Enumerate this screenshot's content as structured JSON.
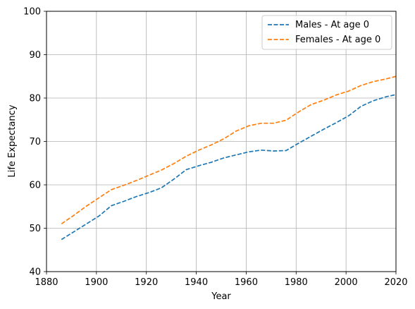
{
  "chart_data": {
    "type": "line",
    "title": "",
    "xlabel": "Year",
    "ylabel": "Life Expectancy",
    "xlim": [
      1880,
      2020
    ],
    "ylim": [
      40,
      100
    ],
    "xticks": [
      1880,
      1900,
      1920,
      1940,
      1960,
      1980,
      2000,
      2020
    ],
    "yticks": [
      40,
      50,
      60,
      70,
      80,
      90,
      100
    ],
    "grid": true,
    "legend_position": "top-right",
    "series": [
      {
        "name": "Males - At age 0",
        "color": "#1f77b4",
        "style": "dashed",
        "x": [
          1886,
          1891,
          1896,
          1901,
          1906,
          1911,
          1916,
          1921,
          1926,
          1931,
          1936,
          1941,
          1946,
          1951,
          1956,
          1961,
          1966,
          1971,
          1976,
          1981,
          1986,
          1991,
          1996,
          2001,
          2006,
          2011,
          2016,
          2020
        ],
        "y": [
          47.4,
          49.2,
          51.0,
          52.8,
          55.2,
          56.2,
          57.3,
          58.2,
          59.3,
          61.3,
          63.5,
          64.4,
          65.2,
          66.2,
          66.9,
          67.6,
          68.0,
          67.8,
          67.9,
          69.6,
          71.2,
          72.8,
          74.3,
          75.9,
          78.1,
          79.4,
          80.3,
          80.8
        ]
      },
      {
        "name": "Females - At age 0",
        "color": "#ff7f0e",
        "style": "dashed",
        "x": [
          1886,
          1891,
          1896,
          1901,
          1906,
          1911,
          1916,
          1921,
          1926,
          1931,
          1936,
          1941,
          1946,
          1951,
          1956,
          1961,
          1966,
          1971,
          1976,
          1981,
          1986,
          1991,
          1996,
          2001,
          2006,
          2011,
          2016,
          2020
        ],
        "y": [
          51.0,
          53.0,
          55.1,
          57.0,
          58.9,
          59.9,
          61.0,
          62.2,
          63.4,
          64.9,
          66.6,
          68.0,
          69.2,
          70.6,
          72.4,
          73.6,
          74.2,
          74.2,
          74.9,
          76.8,
          78.5,
          79.5,
          80.7,
          81.6,
          82.9,
          83.8,
          84.4,
          85.0
        ]
      }
    ]
  }
}
